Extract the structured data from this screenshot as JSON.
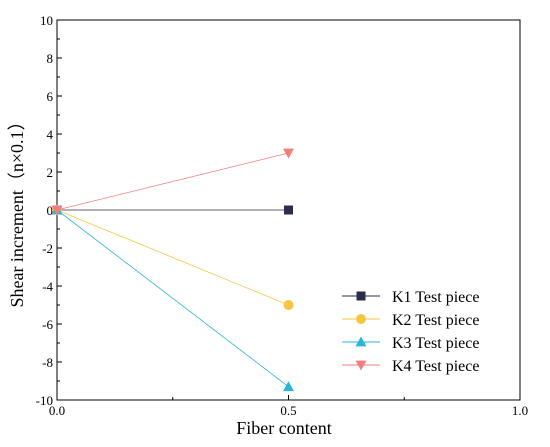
{
  "chart_data": {
    "type": "line",
    "title": "",
    "xlabel": "Fiber content",
    "ylabel": "Shear increment（n×0.1）",
    "xlim": [
      0.0,
      1.0
    ],
    "ylim": [
      -10,
      10
    ],
    "x_ticks": [
      "0.0",
      "0.5",
      "1.0"
    ],
    "y_ticks": [
      "-10",
      "-8",
      "-6",
      "-4",
      "-2",
      "0",
      "2",
      "4",
      "6",
      "8",
      "10"
    ],
    "grid": false,
    "legend_position": "bottom-right",
    "series": [
      {
        "name": "K1 Test piece",
        "marker": "square",
        "color": "#2b2b4b",
        "x": [
          0.0,
          0.5
        ],
        "y": [
          0,
          0
        ]
      },
      {
        "name": "K2 Test piece",
        "marker": "circle",
        "color": "#f5c542",
        "x": [
          0.0,
          0.5
        ],
        "y": [
          0,
          -5
        ]
      },
      {
        "name": "K3 Test piece",
        "marker": "triangle-up",
        "color": "#29b6d8",
        "x": [
          0.0,
          0.5
        ],
        "y": [
          0,
          -9.3
        ]
      },
      {
        "name": "K4 Test piece",
        "marker": "triangle-down",
        "color": "#f47c7c",
        "x": [
          0.0,
          0.5
        ],
        "y": [
          0,
          3
        ]
      }
    ]
  }
}
